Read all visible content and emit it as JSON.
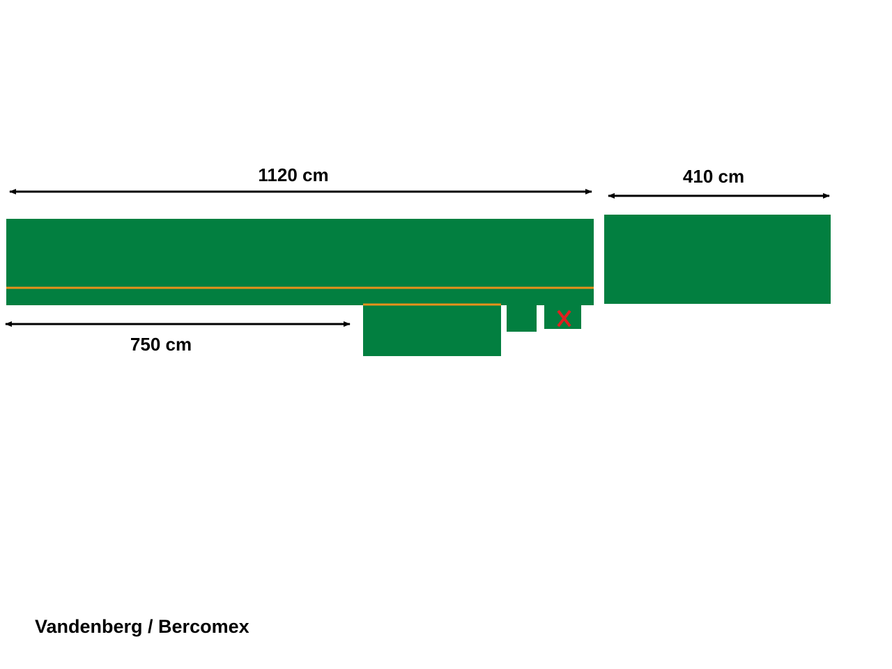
{
  "dimensions": {
    "main_length": "1120 cm",
    "right_length": "410 cm",
    "lower_length": "750 cm"
  },
  "footer": "Vandenberg / Bercomex"
}
